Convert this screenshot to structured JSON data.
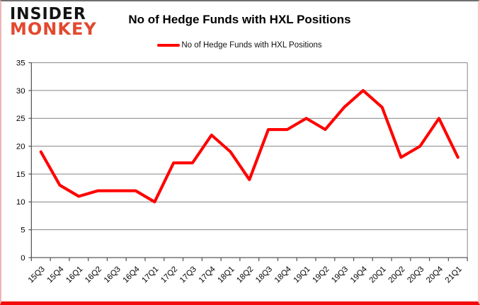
{
  "logo": {
    "line1": "INSIDER",
    "line2": "MONKEY",
    "accent_color": "#e2492f"
  },
  "header": {
    "title": "No of Hedge Funds with HXL Positions"
  },
  "legend": {
    "label": "No of Hedge Funds with HXL Positions",
    "swatch_color": "#ff0000"
  },
  "colors": {
    "line": "#ff0000",
    "grid": "#848484",
    "axis": "#595959",
    "label_text": "#000000",
    "frame_bottom": "#f30b0b"
  },
  "chart_data": {
    "type": "line",
    "title": "No of Hedge Funds with HXL Positions",
    "series_name": "No of Hedge Funds with HXL Positions",
    "categories": [
      "15Q3",
      "15Q4",
      "16Q1",
      "16Q2",
      "16Q3",
      "16Q4",
      "17Q1",
      "17Q2",
      "17Q3",
      "17Q4",
      "18Q1",
      "18Q2",
      "18Q3",
      "18Q4",
      "19Q1",
      "19Q2",
      "19Q3",
      "19Q4",
      "20Q1",
      "20Q2",
      "20Q3",
      "20Q4",
      "21Q1"
    ],
    "values": [
      19,
      13,
      11,
      12,
      12,
      12,
      10,
      17,
      17,
      22,
      19,
      14,
      23,
      23,
      25,
      23,
      27,
      30,
      27,
      18,
      20,
      25,
      18
    ],
    "ylim": [
      0,
      35
    ],
    "yticks": [
      0,
      5,
      10,
      15,
      20,
      25,
      30,
      35
    ],
    "grid": true,
    "legend_position": "top-center",
    "line_color": "#ff0000"
  }
}
